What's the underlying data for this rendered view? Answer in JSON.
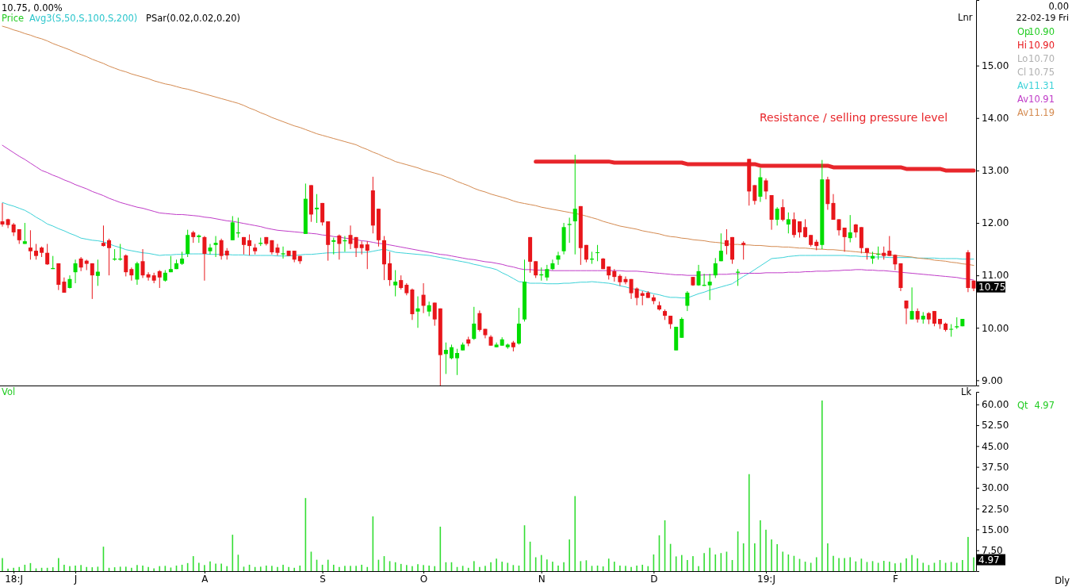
{
  "chart_data": [
    {
      "type": "candlestick",
      "ohlc": [
        [
          12.03,
          12.38,
          11.93,
          11.97
        ],
        [
          12.07,
          12.08,
          11.9,
          11.96
        ],
        [
          11.97,
          12.0,
          11.75,
          11.82
        ],
        [
          11.88,
          11.88,
          11.6,
          11.67
        ],
        [
          11.6,
          12.0,
          11.6,
          11.65
        ],
        [
          11.53,
          11.86,
          11.3,
          11.46
        ],
        [
          11.47,
          11.6,
          11.3,
          11.37
        ],
        [
          11.53,
          11.55,
          11.35,
          11.43
        ],
        [
          11.43,
          11.6,
          11.2,
          11.21
        ],
        [
          11.12,
          11.37,
          11.12,
          11.14
        ],
        [
          11.23,
          11.23,
          10.72,
          10.82
        ],
        [
          10.88,
          10.96,
          10.67,
          10.67
        ],
        [
          10.76,
          11.0,
          10.75,
          10.93
        ],
        [
          11.06,
          11.3,
          10.85,
          11.23
        ],
        [
          11.32,
          11.35,
          11.08,
          11.15
        ],
        [
          11.28,
          11.3,
          11.1,
          11.22
        ],
        [
          11.23,
          11.23,
          10.55,
          11.0
        ],
        [
          10.99,
          11.3,
          10.8,
          11.07
        ],
        [
          11.62,
          11.95,
          11.55,
          11.56
        ],
        [
          11.67,
          11.7,
          11.0,
          11.52
        ],
        [
          11.3,
          11.5,
          11.28,
          11.32
        ],
        [
          11.3,
          11.6,
          11.28,
          11.32
        ],
        [
          11.38,
          11.4,
          10.98,
          11.06
        ],
        [
          11.12,
          11.15,
          10.9,
          11.0
        ],
        [
          10.92,
          11.26,
          10.82,
          11.23
        ],
        [
          11.27,
          11.5,
          10.95,
          11.0
        ],
        [
          11.02,
          11.06,
          10.9,
          10.96
        ],
        [
          11.0,
          11.05,
          10.85,
          10.9
        ],
        [
          11.08,
          11.1,
          10.76,
          10.96
        ],
        [
          10.9,
          11.1,
          10.88,
          11.05
        ],
        [
          11.06,
          11.37,
          11.06,
          11.12
        ],
        [
          11.12,
          11.3,
          11.12,
          11.23
        ],
        [
          11.22,
          11.45,
          11.2,
          11.32
        ],
        [
          11.41,
          11.87,
          11.35,
          11.77
        ],
        [
          11.82,
          11.85,
          11.62,
          11.73
        ],
        [
          11.73,
          11.78,
          11.62,
          11.76
        ],
        [
          11.73,
          11.75,
          10.9,
          11.41
        ],
        [
          11.46,
          11.6,
          11.4,
          11.53
        ],
        [
          11.58,
          11.75,
          11.35,
          11.62
        ],
        [
          11.67,
          11.7,
          11.3,
          11.37
        ],
        [
          11.47,
          11.52,
          11.3,
          11.38
        ],
        [
          11.67,
          12.13,
          11.67,
          12.01
        ],
        [
          11.8,
          12.1,
          11.72,
          11.82
        ],
        [
          11.73,
          11.73,
          11.4,
          11.58
        ],
        [
          11.67,
          11.78,
          11.38,
          11.56
        ],
        [
          11.53,
          11.6,
          11.4,
          11.46
        ],
        [
          11.6,
          11.72,
          11.56,
          11.62
        ],
        [
          11.73,
          11.73,
          11.57,
          11.6
        ],
        [
          11.67,
          11.67,
          11.4,
          11.44
        ],
        [
          11.53,
          11.6,
          11.38,
          11.43
        ],
        [
          11.4,
          11.55,
          11.32,
          11.42
        ],
        [
          11.47,
          11.47,
          11.37,
          11.37
        ],
        [
          11.47,
          11.47,
          11.25,
          11.3
        ],
        [
          11.37,
          11.37,
          11.22,
          11.27
        ],
        [
          11.79,
          12.75,
          11.79,
          12.46
        ],
        [
          12.72,
          12.72,
          12.02,
          12.16
        ],
        [
          12.26,
          12.55,
          12.0,
          12.29
        ],
        [
          12.38,
          12.38,
          11.95,
          12.01
        ],
        [
          12.03,
          12.03,
          11.28,
          11.58
        ],
        [
          11.64,
          11.72,
          11.4,
          11.67
        ],
        [
          11.76,
          11.78,
          11.3,
          11.6
        ],
        [
          11.65,
          11.75,
          11.45,
          11.67
        ],
        [
          11.77,
          11.95,
          11.5,
          11.6
        ],
        [
          11.73,
          11.73,
          11.35,
          11.52
        ],
        [
          11.59,
          11.65,
          11.4,
          11.52
        ],
        [
          11.59,
          11.65,
          11.12,
          11.47
        ],
        [
          12.62,
          12.88,
          11.8,
          11.95
        ],
        [
          12.27,
          12.27,
          11.55,
          11.67
        ],
        [
          11.67,
          11.75,
          10.91,
          11.21
        ],
        [
          11.23,
          11.45,
          10.8,
          10.91
        ],
        [
          10.81,
          11.1,
          10.6,
          10.88
        ],
        [
          10.91,
          11.0,
          10.73,
          10.76
        ],
        [
          10.82,
          10.85,
          10.62,
          10.66
        ],
        [
          10.73,
          10.75,
          10.15,
          10.26
        ],
        [
          10.31,
          10.6,
          10.0,
          10.37
        ],
        [
          10.63,
          10.85,
          10.28,
          10.42
        ],
        [
          10.31,
          10.5,
          10.22,
          10.43
        ],
        [
          10.48,
          10.48,
          10.04,
          10.16
        ],
        [
          10.37,
          10.37,
          8.9,
          9.48
        ],
        [
          9.5,
          9.72,
          9.12,
          9.58
        ],
        [
          9.42,
          9.68,
          9.4,
          9.63
        ],
        [
          9.42,
          9.6,
          9.1,
          9.52
        ],
        [
          9.57,
          9.72,
          9.57,
          9.68
        ],
        [
          9.78,
          9.83,
          9.65,
          9.7
        ],
        [
          9.79,
          10.4,
          9.77,
          10.08
        ],
        [
          10.28,
          10.33,
          9.93,
          9.96
        ],
        [
          9.98,
          9.98,
          9.8,
          9.86
        ],
        [
          9.83,
          9.86,
          9.66,
          9.66
        ],
        [
          9.63,
          9.72,
          9.63,
          9.68
        ],
        [
          9.66,
          9.82,
          9.66,
          9.78
        ],
        [
          9.63,
          9.7,
          9.6,
          9.68
        ],
        [
          9.72,
          9.75,
          9.55,
          9.63
        ],
        [
          9.7,
          10.38,
          9.68,
          10.08
        ],
        [
          10.16,
          11.3,
          10.12,
          10.88
        ],
        [
          11.73,
          11.73,
          11.05,
          11.26
        ],
        [
          11.27,
          11.27,
          10.95,
          11.0
        ],
        [
          11.0,
          11.15,
          10.9,
          11.02
        ],
        [
          10.96,
          11.2,
          10.9,
          11.12
        ],
        [
          11.12,
          11.3,
          11.1,
          11.23
        ],
        [
          11.3,
          11.45,
          11.2,
          11.38
        ],
        [
          11.46,
          12.0,
          11.4,
          11.92
        ],
        [
          11.96,
          12.1,
          11.62,
          11.98
        ],
        [
          12.03,
          13.3,
          11.4,
          12.27
        ],
        [
          12.32,
          12.32,
          11.2,
          11.52
        ],
        [
          11.58,
          11.58,
          11.25,
          11.3
        ],
        [
          11.3,
          11.45,
          11.22,
          11.32
        ],
        [
          11.43,
          11.58,
          11.27,
          11.44
        ],
        [
          11.32,
          11.33,
          11.12,
          11.12
        ],
        [
          11.17,
          11.17,
          10.92,
          11.0
        ],
        [
          11.08,
          11.12,
          10.88,
          10.97
        ],
        [
          10.99,
          11.02,
          10.8,
          10.87
        ],
        [
          10.93,
          10.98,
          10.83,
          10.87
        ],
        [
          10.93,
          10.93,
          10.55,
          10.66
        ],
        [
          10.75,
          10.77,
          10.43,
          10.57
        ],
        [
          10.66,
          10.7,
          10.43,
          10.61
        ],
        [
          10.67,
          10.7,
          10.57,
          10.57
        ],
        [
          10.58,
          10.63,
          10.45,
          10.51
        ],
        [
          10.43,
          10.5,
          10.33,
          10.35
        ],
        [
          10.32,
          10.35,
          10.15,
          10.23
        ],
        [
          10.23,
          10.23,
          9.98,
          10.07
        ],
        [
          9.57,
          10.02,
          9.57,
          10.02
        ],
        [
          9.81,
          10.2,
          9.81,
          10.17
        ],
        [
          10.42,
          10.7,
          10.32,
          10.67
        ],
        [
          10.97,
          10.97,
          10.8,
          10.81
        ],
        [
          10.81,
          11.2,
          10.8,
          11.08
        ],
        [
          10.8,
          11.03,
          10.8,
          10.82
        ],
        [
          10.81,
          11.03,
          10.53,
          10.88
        ],
        [
          11.0,
          11.33,
          10.95,
          11.23
        ],
        [
          11.27,
          11.8,
          11.27,
          11.47
        ],
        [
          11.67,
          11.88,
          11.4,
          11.56
        ],
        [
          11.73,
          11.73,
          11.22,
          11.3
        ],
        [
          11.05,
          11.12,
          10.8,
          11.07
        ],
        [
          11.62,
          11.65,
          11.3,
          11.58
        ],
        [
          13.22,
          13.22,
          12.33,
          12.6
        ],
        [
          12.72,
          12.72,
          12.35,
          12.42
        ],
        [
          12.5,
          13.05,
          12.4,
          12.87
        ],
        [
          12.81,
          12.85,
          12.45,
          12.6
        ],
        [
          12.53,
          12.53,
          11.87,
          12.06
        ],
        [
          12.06,
          12.3,
          11.95,
          12.27
        ],
        [
          12.3,
          12.45,
          12.03,
          12.06
        ],
        [
          11.97,
          12.2,
          11.8,
          12.07
        ],
        [
          12.07,
          12.2,
          11.72,
          11.77
        ],
        [
          12.03,
          12.03,
          11.72,
          11.82
        ],
        [
          11.92,
          12.07,
          11.72,
          11.73
        ],
        [
          11.77,
          11.77,
          11.55,
          11.58
        ],
        [
          11.64,
          11.68,
          11.48,
          11.56
        ],
        [
          11.58,
          13.2,
          11.5,
          12.83
        ],
        [
          12.83,
          12.88,
          12.25,
          12.36
        ],
        [
          12.38,
          12.55,
          12.06,
          12.06
        ],
        [
          12.07,
          12.07,
          11.76,
          11.86
        ],
        [
          11.91,
          11.91,
          11.45,
          11.73
        ],
        [
          11.71,
          12.15,
          11.63,
          11.82
        ],
        [
          11.97,
          11.98,
          11.72,
          11.82
        ],
        [
          11.92,
          11.92,
          11.42,
          11.52
        ],
        [
          11.52,
          11.52,
          11.3,
          11.43
        ],
        [
          11.32,
          11.45,
          11.22,
          11.37
        ],
        [
          11.4,
          11.55,
          11.3,
          11.41
        ],
        [
          11.43,
          11.55,
          11.3,
          11.37
        ],
        [
          11.47,
          11.75,
          11.37,
          11.37
        ],
        [
          11.39,
          11.4,
          11.1,
          11.21
        ],
        [
          11.23,
          11.23,
          10.7,
          10.76
        ],
        [
          10.52,
          10.52,
          10.07,
          10.37
        ],
        [
          10.16,
          10.77,
          10.16,
          10.32
        ],
        [
          10.32,
          10.37,
          10.1,
          10.16
        ],
        [
          10.16,
          10.3,
          10.08,
          10.23
        ],
        [
          10.28,
          10.3,
          10.07,
          10.16
        ],
        [
          10.32,
          10.32,
          10.03,
          10.08
        ],
        [
          10.17,
          10.17,
          9.98,
          10.07
        ],
        [
          10.08,
          10.1,
          9.93,
          9.96
        ],
        [
          9.97,
          10.07,
          9.83,
          9.98
        ],
        [
          10.01,
          10.2,
          9.98,
          10.03
        ],
        [
          10.03,
          10.17,
          10.03,
          10.17
        ],
        [
          11.44,
          11.48,
          10.68,
          10.76
        ],
        [
          10.9,
          10.9,
          10.7,
          10.75
        ]
      ],
      "series": [
        {
          "name": "Av",
          "type": "line",
          "color": "#3cd2d8",
          "values": [
            12.39,
            12.35,
            12.32,
            12.28,
            12.24,
            12.18,
            12.11,
            12.05,
            11.98,
            11.94,
            11.89,
            11.85,
            11.8,
            11.76,
            11.71,
            11.69,
            11.67,
            11.66,
            11.64,
            11.6,
            11.56,
            11.53,
            11.49,
            11.47,
            11.45,
            11.43,
            11.42,
            11.4,
            11.38,
            11.39,
            11.39,
            11.4,
            11.4,
            11.41,
            11.41,
            11.41,
            11.41,
            11.4,
            11.4,
            11.4,
            11.4,
            11.39,
            11.39,
            11.39,
            11.38,
            11.38,
            11.38,
            11.38,
            11.38,
            11.37,
            11.37,
            11.37,
            11.38,
            11.39,
            11.4,
            11.4,
            11.41,
            11.42,
            11.43,
            11.43,
            11.44,
            11.44,
            11.44,
            11.44,
            11.44,
            11.44,
            11.46,
            11.48,
            11.5,
            11.47,
            11.44,
            11.43,
            11.42,
            11.41,
            11.4,
            11.39,
            11.38,
            11.36,
            11.34,
            11.32,
            11.3,
            11.28,
            11.26,
            11.24,
            11.21,
            11.19,
            11.16,
            11.14,
            11.11,
            11.05,
            11.0,
            10.94,
            10.88,
            10.87,
            10.85,
            10.85,
            10.85,
            10.84,
            10.84,
            10.84,
            10.85,
            10.85,
            10.86,
            10.87,
            10.87,
            10.88,
            10.87,
            10.86,
            10.85,
            10.83,
            10.8,
            10.78,
            10.75,
            10.73,
            10.71,
            10.68,
            10.65,
            10.63,
            10.6,
            10.58,
            10.58,
            10.57,
            10.57,
            10.61,
            10.65,
            10.68,
            10.72,
            10.75,
            10.78,
            10.81,
            10.84,
            10.91,
            10.98,
            11.04,
            11.11,
            11.18,
            11.25,
            11.32,
            11.33,
            11.34,
            11.36,
            11.37,
            11.38,
            11.38,
            11.38,
            11.38,
            11.38,
            11.38,
            11.38,
            11.38,
            11.38,
            11.37,
            11.37,
            11.36,
            11.36,
            11.35,
            11.35,
            11.35,
            11.34,
            11.34,
            11.34,
            11.34,
            11.34,
            11.33,
            11.33,
            11.33,
            11.33,
            11.32,
            11.32,
            11.32,
            11.32,
            11.31,
            11.31,
            11.31
          ]
        },
        {
          "name": "Av",
          "type": "line",
          "color": "#c03cc8",
          "values": [
            13.48,
            13.41,
            13.34,
            13.27,
            13.21,
            13.14,
            13.07,
            13.0,
            12.96,
            12.91,
            12.87,
            12.82,
            12.78,
            12.73,
            12.69,
            12.65,
            12.6,
            12.56,
            12.52,
            12.47,
            12.43,
            12.39,
            12.36,
            12.33,
            12.3,
            12.28,
            12.25,
            12.22,
            12.19,
            12.18,
            12.17,
            12.16,
            12.16,
            12.15,
            12.14,
            12.13,
            12.11,
            12.1,
            12.08,
            12.06,
            12.04,
            12.03,
            12.01,
            11.99,
            11.97,
            11.95,
            11.93,
            11.9,
            11.88,
            11.86,
            11.85,
            11.84,
            11.83,
            11.82,
            11.81,
            11.8,
            11.79,
            11.77,
            11.76,
            11.74,
            11.73,
            11.71,
            11.7,
            11.68,
            11.66,
            11.65,
            11.63,
            11.61,
            11.6,
            11.58,
            11.56,
            11.54,
            11.52,
            11.5,
            11.48,
            11.46,
            11.44,
            11.42,
            11.4,
            11.39,
            11.37,
            11.35,
            11.33,
            11.31,
            11.3,
            11.28,
            11.26,
            11.25,
            11.23,
            11.21,
            11.18,
            11.16,
            11.13,
            11.11,
            11.11,
            11.1,
            11.1,
            11.1,
            11.09,
            11.09,
            11.09,
            11.09,
            11.09,
            11.09,
            11.09,
            11.09,
            11.09,
            11.09,
            11.09,
            11.09,
            11.09,
            11.08,
            11.08,
            11.08,
            11.07,
            11.06,
            11.05,
            11.04,
            11.03,
            11.02,
            11.01,
            11.01,
            11.0,
            11.0,
            11.0,
            11.01,
            11.01,
            11.02,
            11.02,
            11.02,
            11.03,
            11.03,
            11.04,
            11.04,
            11.04,
            11.04,
            11.05,
            11.05,
            11.05,
            11.05,
            11.06,
            11.06,
            11.06,
            11.07,
            11.07,
            11.08,
            11.08,
            11.08,
            11.09,
            11.09,
            11.1,
            11.1,
            11.11,
            11.11,
            11.1,
            11.1,
            11.09,
            11.09,
            11.08,
            11.07,
            11.06,
            11.05,
            11.04,
            11.03,
            11.02,
            11.01,
            11.0,
            10.99,
            10.98,
            10.97,
            10.96,
            10.94,
            10.93,
            10.91
          ]
        },
        {
          "name": "Av",
          "type": "line",
          "color": "#d48a50",
          "values": [
            15.75,
            15.72,
            15.68,
            15.65,
            15.61,
            15.58,
            15.54,
            15.51,
            15.47,
            15.42,
            15.38,
            15.34,
            15.3,
            15.25,
            15.21,
            15.17,
            15.12,
            15.08,
            15.04,
            14.99,
            14.95,
            14.91,
            14.88,
            14.84,
            14.81,
            14.78,
            14.75,
            14.71,
            14.68,
            14.65,
            14.63,
            14.6,
            14.57,
            14.55,
            14.52,
            14.49,
            14.46,
            14.43,
            14.4,
            14.37,
            14.34,
            14.31,
            14.28,
            14.24,
            14.19,
            14.15,
            14.1,
            14.06,
            14.01,
            13.97,
            13.93,
            13.89,
            13.85,
            13.82,
            13.78,
            13.74,
            13.7,
            13.67,
            13.64,
            13.61,
            13.58,
            13.55,
            13.52,
            13.49,
            13.44,
            13.4,
            13.35,
            13.31,
            13.26,
            13.22,
            13.17,
            13.14,
            13.11,
            13.08,
            13.05,
            13.01,
            12.98,
            12.95,
            12.92,
            12.88,
            12.84,
            12.79,
            12.75,
            12.71,
            12.66,
            12.62,
            12.59,
            12.55,
            12.52,
            12.49,
            12.46,
            12.42,
            12.39,
            12.37,
            12.35,
            12.33,
            12.3,
            12.28,
            12.26,
            12.24,
            12.22,
            12.2,
            12.18,
            12.16,
            12.13,
            12.1,
            12.07,
            12.03,
            12.0,
            11.97,
            11.94,
            11.92,
            11.9,
            11.88,
            11.85,
            11.83,
            11.81,
            11.79,
            11.76,
            11.74,
            11.73,
            11.71,
            11.7,
            11.68,
            11.67,
            11.66,
            11.64,
            11.63,
            11.62,
            11.6,
            11.59,
            11.59,
            11.58,
            11.58,
            11.57,
            11.57,
            11.56,
            11.55,
            11.55,
            11.54,
            11.54,
            11.53,
            11.52,
            11.52,
            11.51,
            11.5,
            11.5,
            11.49,
            11.49,
            11.48,
            11.47,
            11.46,
            11.45,
            11.44,
            11.43,
            11.42,
            11.41,
            11.4,
            11.39,
            11.38,
            11.37,
            11.36,
            11.35,
            11.33,
            11.32,
            11.31,
            11.29,
            11.28,
            11.27,
            11.25,
            11.24,
            11.22,
            11.21,
            11.19
          ]
        },
        {
          "type": "line",
          "color": "#e8262b",
          "values": [
            null,
            null,
            null,
            null,
            null,
            null,
            null,
            null,
            null,
            null,
            null,
            null,
            null,
            null,
            null,
            null,
            null,
            null,
            null,
            null,
            null,
            null,
            null,
            null,
            null,
            null,
            null,
            null,
            null,
            null,
            null,
            null,
            null,
            null,
            null,
            null,
            null,
            null,
            null,
            null,
            null,
            null,
            null,
            null,
            null,
            null,
            null,
            null,
            null,
            null,
            null,
            null,
            null,
            null,
            null,
            null,
            null,
            null,
            null,
            null,
            null,
            null,
            null,
            null,
            null,
            null,
            null,
            null,
            null,
            null,
            null,
            null,
            null,
            null,
            null,
            null,
            null,
            null,
            null,
            null,
            null,
            null,
            null,
            null,
            null,
            null,
            null,
            null,
            null,
            null,
            null,
            null,
            null,
            null,
            null,
            13.17,
            13.17,
            13.17,
            13.17,
            13.17,
            13.17,
            13.17,
            13.17,
            13.17,
            13.17,
            13.17,
            13.17,
            13.17,
            13.17,
            13.15,
            13.15,
            13.15,
            13.15,
            13.15,
            13.15,
            13.15,
            13.15,
            13.15,
            13.15,
            13.15,
            13.15,
            13.15,
            13.12,
            13.12,
            13.12,
            13.12,
            13.12,
            13.12,
            13.12,
            13.12,
            13.12,
            13.12,
            13.12,
            13.12,
            13.12,
            13.09,
            13.09,
            13.09,
            13.09,
            13.09,
            13.09,
            13.09,
            13.09,
            13.09,
            13.09,
            13.09,
            13.09,
            13.09,
            13.06,
            13.06,
            13.06,
            13.06,
            13.06,
            13.06,
            13.06,
            13.06,
            13.06,
            13.06,
            13.06,
            13.06,
            13.06,
            13.03,
            13.03,
            13.03,
            13.03,
            13.03,
            13.03,
            13.03,
            13.0,
            13.0,
            13.0,
            13.0,
            13.0,
            13.0
          ]
        }
      ],
      "ylim": [
        8.9,
        16.25
      ],
      "yticks": [
        {
          "value": 9,
          "label": "9.00"
        },
        {
          "value": 10,
          "label": "10.00"
        },
        {
          "value": 11,
          "label": "11.00"
        },
        {
          "value": 12,
          "label": "12.00"
        },
        {
          "value": 13,
          "label": "13.00"
        },
        {
          "value": 14,
          "label": "14.00"
        },
        {
          "value": 15,
          "label": "15.00"
        }
      ],
      "annotations": [
        "10.75,  0.00%",
        "Price",
        "Avg3(S,50,S,100,S,200)",
        "PSar(0.02,0.02,0.20)",
        "Resistance / selling pressure level",
        "Lnr",
        "0.00",
        "22-02-19 Fri",
        "Op",
        "10.90",
        "Hi",
        "10.90",
        "Lo",
        "10.70",
        "Cl",
        "10.75",
        "11.31",
        "10.91",
        "11.19",
        "10.75"
      ]
    },
    {
      "type": "bar",
      "color": "#33dd33",
      "categories": [
        null,
        null,
        "18:J",
        null,
        null,
        null,
        null,
        null,
        null,
        null,
        null,
        null,
        null,
        "J",
        null,
        null,
        null,
        null,
        null,
        null,
        null,
        null,
        null,
        null,
        null,
        null,
        null,
        null,
        null,
        null,
        null,
        null,
        null,
        null,
        null,
        null,
        "A",
        null,
        null,
        null,
        null,
        null,
        null,
        null,
        null,
        null,
        null,
        null,
        null,
        null,
        null,
        null,
        null,
        null,
        null,
        null,
        null,
        "S",
        null,
        null,
        null,
        null,
        null,
        null,
        null,
        null,
        null,
        null,
        null,
        null,
        null,
        null,
        null,
        null,
        null,
        "O",
        null,
        null,
        null,
        null,
        null,
        null,
        null,
        null,
        null,
        null,
        null,
        null,
        null,
        null,
        null,
        null,
        null,
        null,
        null,
        null,
        "N",
        null,
        null,
        null,
        null,
        null,
        null,
        null,
        null,
        null,
        null,
        null,
        null,
        null,
        null,
        null,
        null,
        null,
        null,
        null,
        "D",
        null,
        null,
        null,
        null,
        null,
        null,
        null,
        null,
        null,
        null,
        null,
        null,
        null,
        null,
        null,
        null,
        null,
        null,
        null,
        "19:J",
        null,
        null,
        null,
        null,
        null,
        null,
        null,
        null,
        null,
        null,
        null,
        null,
        null,
        null,
        null,
        null,
        null,
        null,
        null,
        null,
        null,
        null,
        "F",
        null,
        null,
        null,
        null,
        null,
        null,
        null,
        null,
        null,
        null,
        null,
        null,
        null,
        null
      ],
      "values": [
        4.7,
        0.9,
        1.2,
        1.5,
        2.3,
        2.9,
        1.0,
        1.2,
        1.2,
        1.4,
        4.7,
        2.3,
        1.8,
        2.0,
        2.2,
        1.5,
        1.4,
        1.6,
        8.8,
        1.2,
        1.4,
        1.6,
        1.6,
        1.2,
        2.2,
        2.0,
        1.5,
        1.0,
        1.8,
        1.9,
        1.3,
        2.0,
        2.3,
        2.9,
        5.4,
        3.0,
        2.2,
        3.5,
        2.7,
        2.7,
        1.8,
        13.1,
        5.9,
        1.6,
        2.3,
        1.5,
        1.6,
        2.0,
        1.9,
        1.5,
        2.3,
        1.5,
        1.2,
        2.0,
        26.3,
        7.0,
        4.1,
        2.3,
        4.1,
        2.3,
        1.5,
        1.9,
        1.9,
        1.9,
        2.3,
        1.5,
        19.7,
        4.1,
        5.4,
        3.6,
        3.2,
        2.6,
        2.2,
        1.8,
        2.5,
        2.2,
        2.0,
        1.8,
        16.0,
        3.2,
        3.2,
        1.5,
        1.9,
        1.2,
        3.6,
        1.5,
        1.9,
        3.2,
        4.5,
        3.4,
        3.0,
        2.2,
        2.0,
        16.5,
        10.6,
        5.0,
        5.8,
        4.2,
        3.4,
        2.0,
        3.2,
        11.4,
        27.0,
        3.6,
        3.9,
        1.9,
        2.0,
        1.7,
        4.5,
        3.4,
        2.0,
        1.9,
        1.5,
        2.0,
        2.3,
        1.8,
        6.0,
        12.9,
        18.3,
        9.8,
        5.3,
        5.8,
        4.0,
        5.4,
        1.8,
        6.5,
        8.4,
        6.0,
        6.5,
        7.0,
        4.0,
        14.3,
        10.0,
        34.9,
        10.0,
        18.3,
        14.9,
        11.4,
        9.7,
        7.0,
        6.0,
        5.5,
        4.4,
        3.4,
        3.0,
        5.0,
        61.4,
        10.0,
        5.5,
        4.7,
        4.7,
        5.0,
        3.5,
        4.5,
        3.3,
        3.6,
        3.0,
        3.7,
        3.4,
        2.8,
        3.0,
        4.6,
        5.8,
        4.6,
        3.0,
        2.2,
        3.0,
        4.0,
        3.0,
        3.3,
        3.0,
        4.0,
        12.3,
        4.97
      ],
      "ylim": [
        0,
        64.5
      ],
      "yticks": [
        {
          "value": 7.5,
          "label": "7.50"
        },
        {
          "value": 15,
          "label": "15.00"
        },
        {
          "value": 22.5,
          "label": "22.50"
        },
        {
          "value": 30,
          "label": "30.00"
        },
        {
          "value": 37.5,
          "label": "37.50"
        },
        {
          "value": 45,
          "label": "45.00"
        },
        {
          "value": 52.5,
          "label": "52.50"
        },
        {
          "value": 60,
          "label": "60.00"
        }
      ],
      "annotations": [
        "Vol",
        "Lk",
        "Qt",
        "Dly",
        "4.97"
      ]
    }
  ]
}
